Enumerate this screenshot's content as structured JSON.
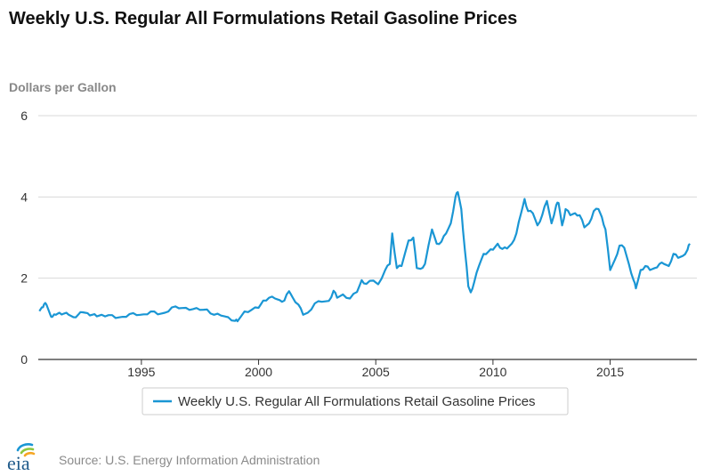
{
  "title": "Weekly U.S. Regular All Formulations Retail Gasoline Prices",
  "source": "Source: U.S. Energy Information Administration",
  "logo_text": "eia",
  "colors": {
    "line": "#1a96d4",
    "grid": "#d8d8d8",
    "axis": "#333333"
  },
  "chart_data": {
    "type": "line",
    "title": "Weekly U.S. Regular All Formulations Retail Gasoline Prices",
    "ylabel": "Dollars per Gallon",
    "xlabel": "",
    "xlim": [
      1990.6,
      2018.7
    ],
    "ylim": [
      0,
      6
    ],
    "yticks": [
      0,
      2,
      4,
      6
    ],
    "xticks": [
      1995,
      2000,
      2005,
      2010,
      2015
    ],
    "grid": true,
    "legend": "bottom-center",
    "series": [
      {
        "name": "Weekly U.S. Regular All Formulations Retail Gasoline Prices",
        "x": [
          1990.65,
          1990.75,
          1990.85,
          1990.95,
          1991.1,
          1991.2,
          1991.35,
          1991.5,
          1991.7,
          1991.9,
          1992.1,
          1992.3,
          1992.5,
          1992.7,
          1992.9,
          1993.1,
          1993.3,
          1993.6,
          1993.9,
          1994.2,
          1994.5,
          1994.8,
          1995.1,
          1995.4,
          1995.7,
          1996.0,
          1996.3,
          1996.6,
          1996.9,
          1997.2,
          1997.5,
          1997.8,
          1998.1,
          1998.4,
          1998.7,
          1999.0,
          1999.1,
          1999.4,
          1999.7,
          2000.0,
          2000.2,
          2000.45,
          2000.7,
          2000.9,
          2001.1,
          2001.3,
          2001.45,
          2001.7,
          2001.9,
          2002.1,
          2002.4,
          2002.7,
          2003.0,
          2003.2,
          2003.35,
          2003.6,
          2003.9,
          2004.2,
          2004.4,
          2004.6,
          2004.9,
          2005.1,
          2005.4,
          2005.6,
          2005.7,
          2005.9,
          2006.1,
          2006.4,
          2006.6,
          2006.75,
          2006.9,
          2007.1,
          2007.4,
          2007.6,
          2007.8,
          2008.0,
          2008.2,
          2008.4,
          2008.5,
          2008.65,
          2008.8,
          2008.95,
          2009.05,
          2009.2,
          2009.4,
          2009.6,
          2009.8,
          2010.0,
          2010.2,
          2010.4,
          2010.6,
          2010.8,
          2011.0,
          2011.2,
          2011.35,
          2011.5,
          2011.7,
          2011.9,
          2012.1,
          2012.3,
          2012.5,
          2012.7,
          2012.8,
          2012.95,
          2013.1,
          2013.3,
          2013.5,
          2013.7,
          2013.9,
          2014.1,
          2014.3,
          2014.5,
          2014.65,
          2014.8,
          2015.0,
          2015.2,
          2015.4,
          2015.6,
          2015.8,
          2016.0,
          2016.1,
          2016.3,
          2016.5,
          2016.7,
          2016.9,
          2017.1,
          2017.3,
          2017.5,
          2017.7,
          2017.9,
          2018.1,
          2018.3,
          2018.4
        ],
        "values": [
          1.19,
          1.28,
          1.36,
          1.35,
          1.12,
          1.05,
          1.1,
          1.15,
          1.13,
          1.1,
          1.04,
          1.1,
          1.16,
          1.14,
          1.1,
          1.06,
          1.1,
          1.09,
          1.02,
          1.05,
          1.12,
          1.09,
          1.11,
          1.18,
          1.11,
          1.15,
          1.28,
          1.26,
          1.27,
          1.24,
          1.22,
          1.23,
          1.1,
          1.08,
          1.04,
          0.95,
          0.94,
          1.18,
          1.22,
          1.27,
          1.45,
          1.52,
          1.5,
          1.46,
          1.45,
          1.68,
          1.53,
          1.35,
          1.1,
          1.15,
          1.38,
          1.42,
          1.44,
          1.69,
          1.52,
          1.6,
          1.5,
          1.66,
          1.95,
          1.86,
          1.94,
          1.85,
          2.2,
          2.35,
          3.1,
          2.25,
          2.3,
          2.93,
          3.0,
          2.25,
          2.23,
          2.35,
          3.2,
          2.85,
          2.9,
          3.1,
          3.35,
          4.0,
          4.12,
          3.7,
          2.7,
          1.8,
          1.65,
          1.9,
          2.3,
          2.6,
          2.65,
          2.7,
          2.85,
          2.72,
          2.73,
          2.85,
          3.1,
          3.6,
          3.95,
          3.65,
          3.6,
          3.3,
          3.55,
          3.9,
          3.35,
          3.8,
          3.85,
          3.3,
          3.7,
          3.55,
          3.6,
          3.55,
          3.25,
          3.35,
          3.65,
          3.7,
          3.5,
          3.2,
          2.2,
          2.45,
          2.8,
          2.75,
          2.35,
          1.95,
          1.75,
          2.2,
          2.3,
          2.2,
          2.25,
          2.35,
          2.35,
          2.3,
          2.6,
          2.5,
          2.55,
          2.7,
          2.85
        ]
      }
    ]
  }
}
